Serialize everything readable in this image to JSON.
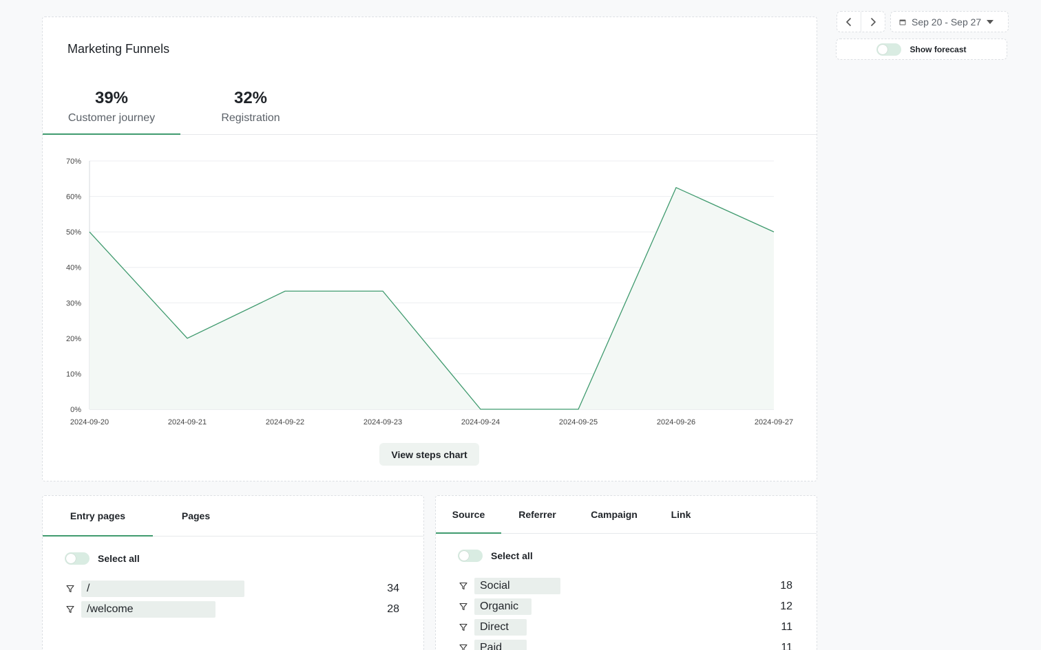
{
  "funnel": {
    "title": "Marketing Funnels",
    "kpis": [
      {
        "value": "39%",
        "label": "Customer journey"
      },
      {
        "value": "32%",
        "label": "Registration"
      }
    ],
    "view_steps_label": "View steps chart"
  },
  "controls": {
    "date_range": "Sep 20 - Sep 27",
    "forecast_label": "Show forecast"
  },
  "pages": {
    "tabs": [
      "Entry pages",
      "Pages"
    ],
    "select_all_label": "Select all",
    "rows": [
      {
        "label": "/",
        "count": "34"
      },
      {
        "label": "/welcome",
        "count": "28"
      }
    ]
  },
  "source": {
    "tabs": [
      "Source",
      "Referrer",
      "Campaign",
      "Link"
    ],
    "select_all_label": "Select all",
    "rows": [
      {
        "label": "Social",
        "count": "18"
      },
      {
        "label": "Organic",
        "count": "12"
      },
      {
        "label": "Direct",
        "count": "11"
      },
      {
        "label": "Paid",
        "count": "11"
      }
    ]
  },
  "colors": {
    "accent": "#3f9a6e",
    "area_fill": "#f3f8f5",
    "grid": "#eceef0",
    "bar": "#e9efec"
  },
  "chart_data": {
    "type": "area",
    "x": [
      "2024-09-20",
      "2024-09-21",
      "2024-09-22",
      "2024-09-23",
      "2024-09-24",
      "2024-09-25",
      "2024-09-26",
      "2024-09-27"
    ],
    "series": [
      {
        "values": [
          50,
          20,
          33.3,
          33.3,
          0,
          0,
          62.5,
          50
        ]
      }
    ],
    "y_ticks": [
      "0%",
      "10%",
      "20%",
      "30%",
      "40%",
      "50%",
      "60%",
      "70%"
    ],
    "ylim": [
      0,
      70
    ],
    "grid": true
  }
}
